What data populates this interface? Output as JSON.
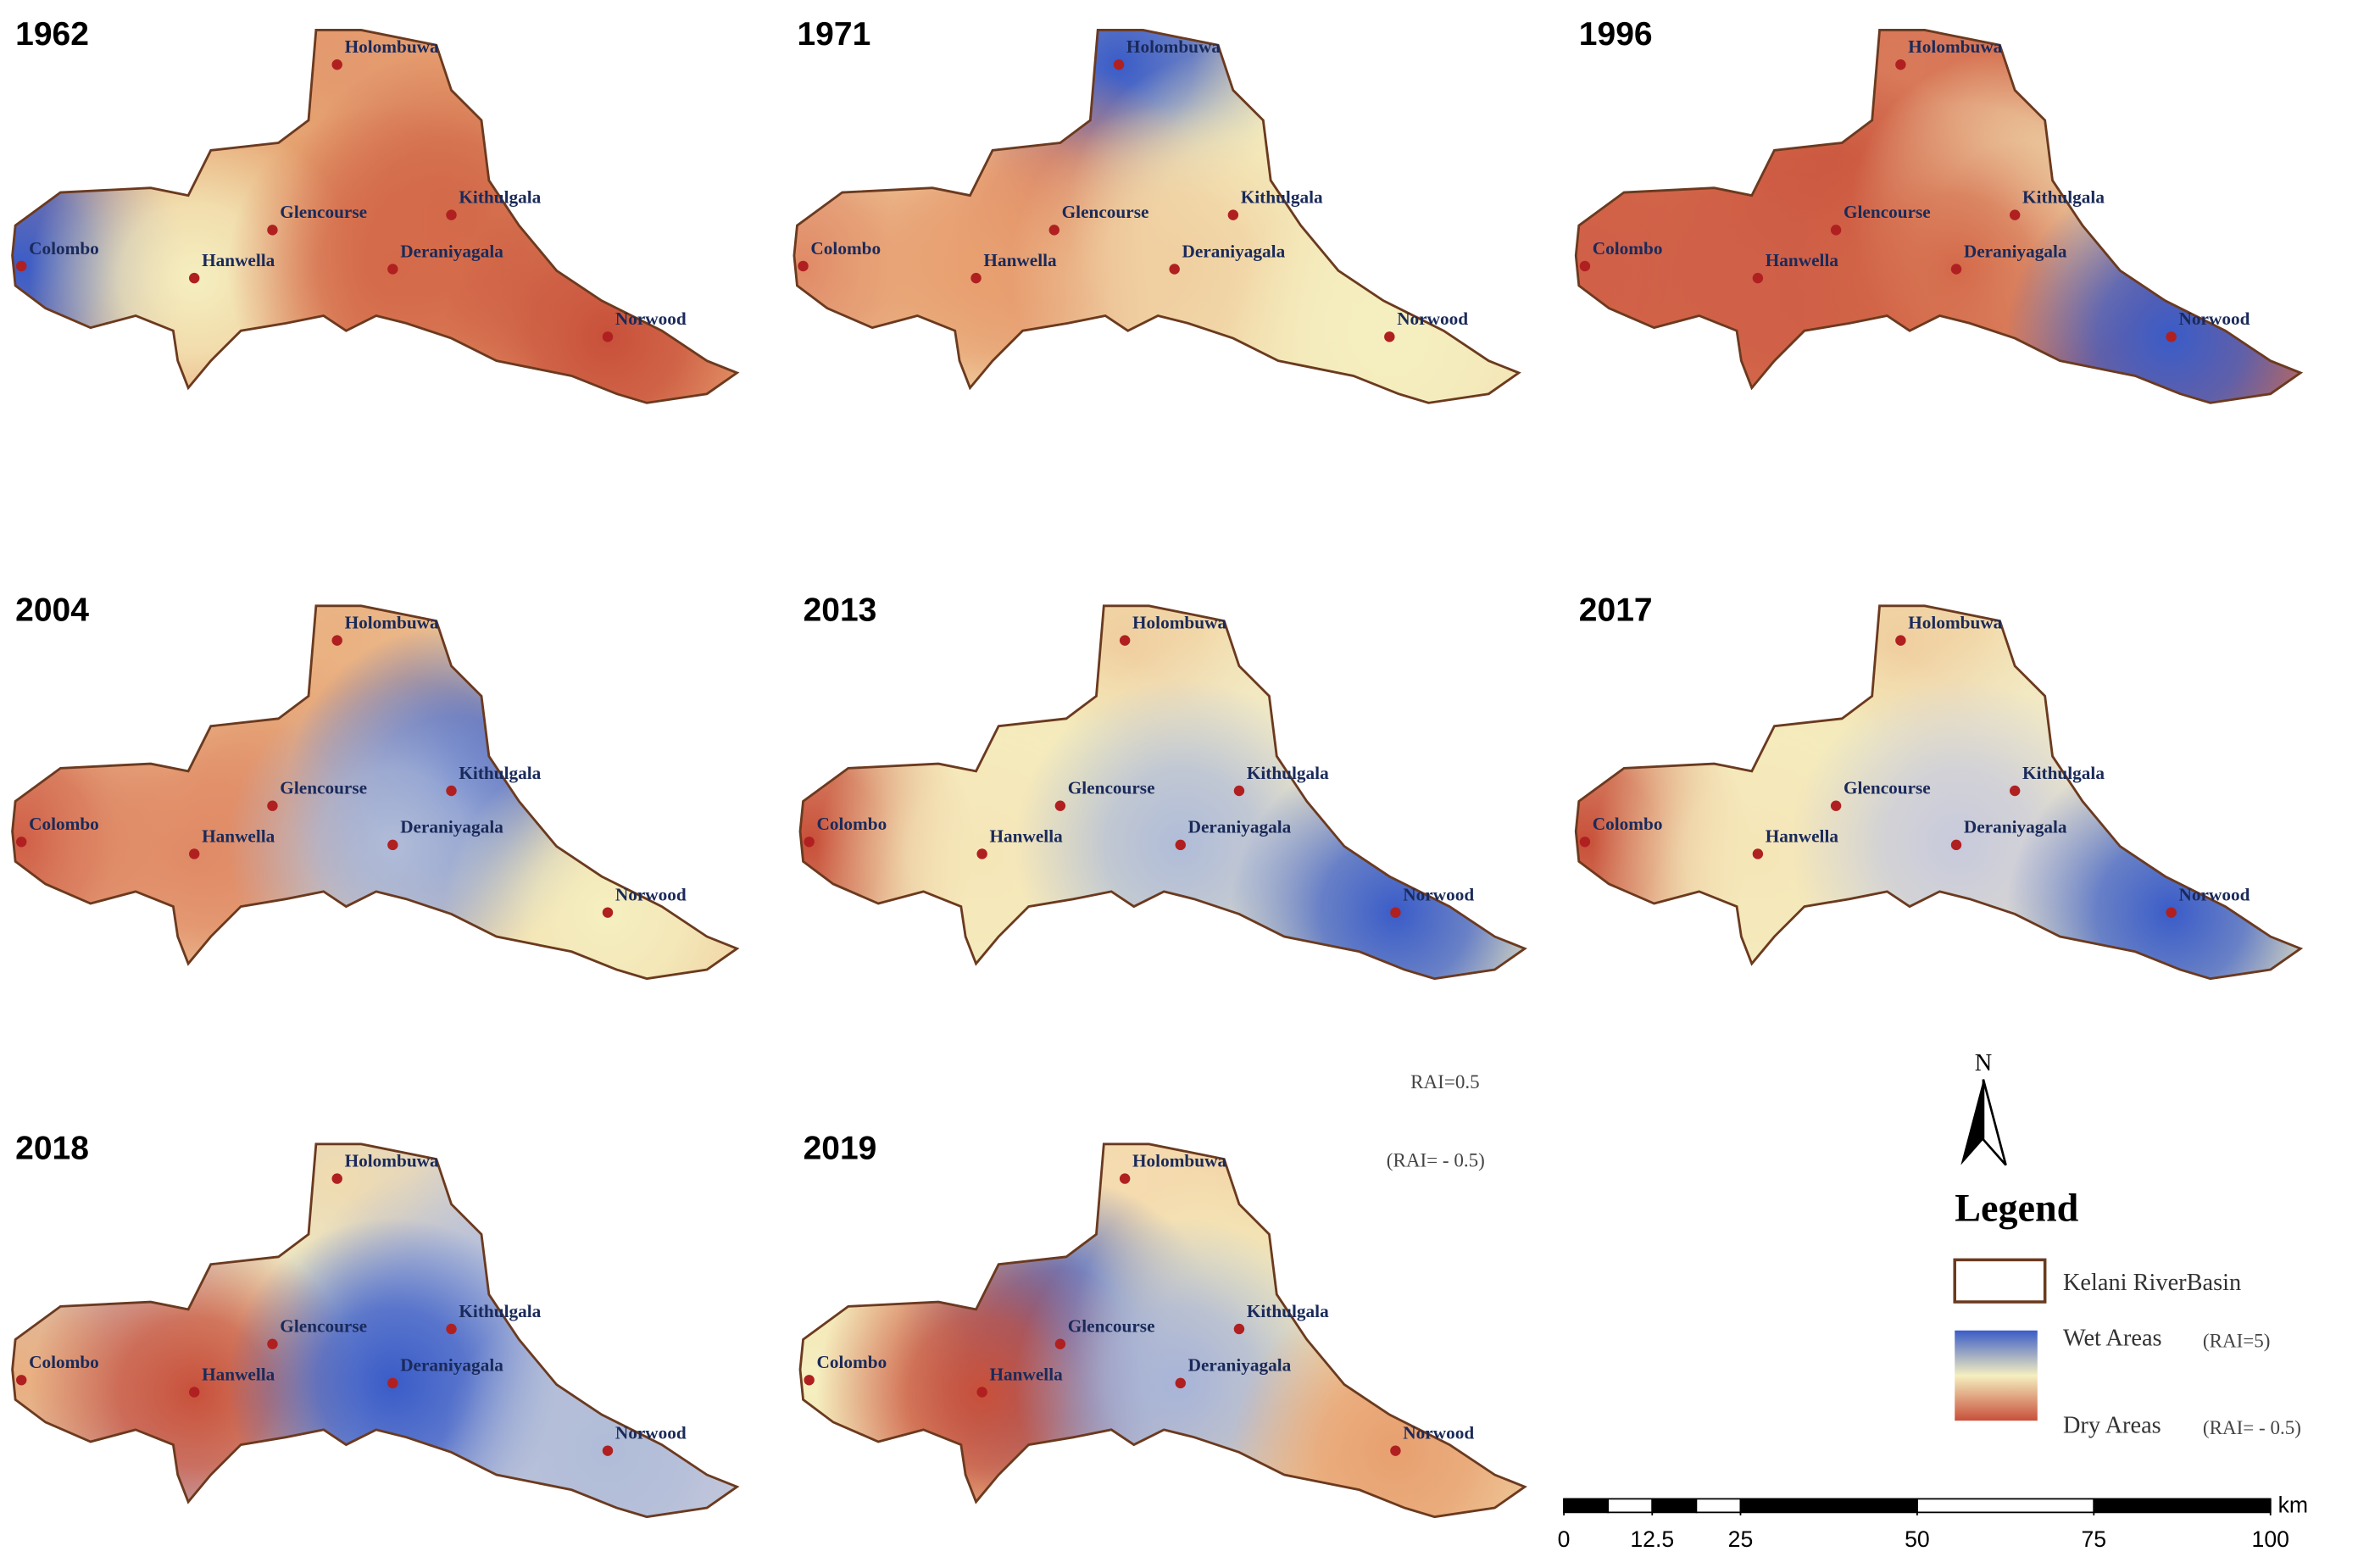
{
  "panels": [
    {
      "year": "1962",
      "base": "#e8a070",
      "colors": [
        "#e39a6e",
        "#e6a874",
        "#d06848",
        "#3a5cc8",
        "#f5efc0",
        "#d46a4a",
        "#c8503a"
      ]
    },
    {
      "year": "1971",
      "base": "#f3e3b4",
      "colors": [
        "#3a5cc8",
        "#d9775a",
        "#f5efc0",
        "#e08a66",
        "#e8a070",
        "#f0cfa0",
        "#f5efc0"
      ]
    },
    {
      "year": "1996",
      "base": "#d46a4a",
      "colors": [
        "#d87a5a",
        "#c8503a",
        "#f5efc0",
        "#d06048",
        "#d06048",
        "#d46a4a",
        "#3a5cc8"
      ]
    },
    {
      "year": "2004",
      "base": "#f0cfa0",
      "colors": [
        "#eab080",
        "#e39a6e",
        "#3a5cc8",
        "#d06048",
        "#e08a66",
        "#b0bcd8",
        "#f5efc0"
      ]
    },
    {
      "year": "2013",
      "base": "#f5efc0",
      "colors": [
        "#f0cfa0",
        "#f5efc0",
        "#f0e8c8",
        "#c8503a",
        "#f5e6b8",
        "#b0bcd8",
        "#3a5cc8"
      ]
    },
    {
      "year": "2017",
      "base": "#f5efc0",
      "colors": [
        "#f0cfa0",
        "#f5efc0",
        "#f0e8c8",
        "#c8503a",
        "#f5e6b8",
        "#c8cadc",
        "#3a5cc8"
      ]
    },
    {
      "year": "2018",
      "base": "#c8cadc",
      "colors": [
        "#f0dcb0",
        "#f5efc0",
        "#b0bcd8",
        "#eab080",
        "#c8503a",
        "#3a5cc8",
        "#b0bcd8"
      ]
    },
    {
      "year": "2019",
      "base": "#f0cfa0",
      "colors": [
        "#f5dcb0",
        "#3a5cc8",
        "#f5efc0",
        "#f5efc0",
        "#c8503a",
        "#a8b4d8",
        "#e8a070"
      ]
    }
  ],
  "stations": [
    "Holombuwa",
    "Glencourse",
    "Kithulgala",
    "Colombo",
    "Hanwella",
    "Deraniyagala",
    "Norwood"
  ],
  "floating_labels": [
    "RAI=0.5",
    "(RAI= - 0.5)"
  ],
  "legend": {
    "north": "N",
    "title": "Legend",
    "basin": "Kelani RiverBasin",
    "wet": "Wet Areas",
    "wet_rai": "(RAI=5)",
    "dry": "Dry Areas",
    "dry_rai": "(RAI= - 0.5)"
  },
  "scale_bar": {
    "unit": "km",
    "lim": [
      0,
      100
    ],
    "ticks": [
      0,
      12.5,
      25,
      50,
      75,
      100
    ]
  }
}
